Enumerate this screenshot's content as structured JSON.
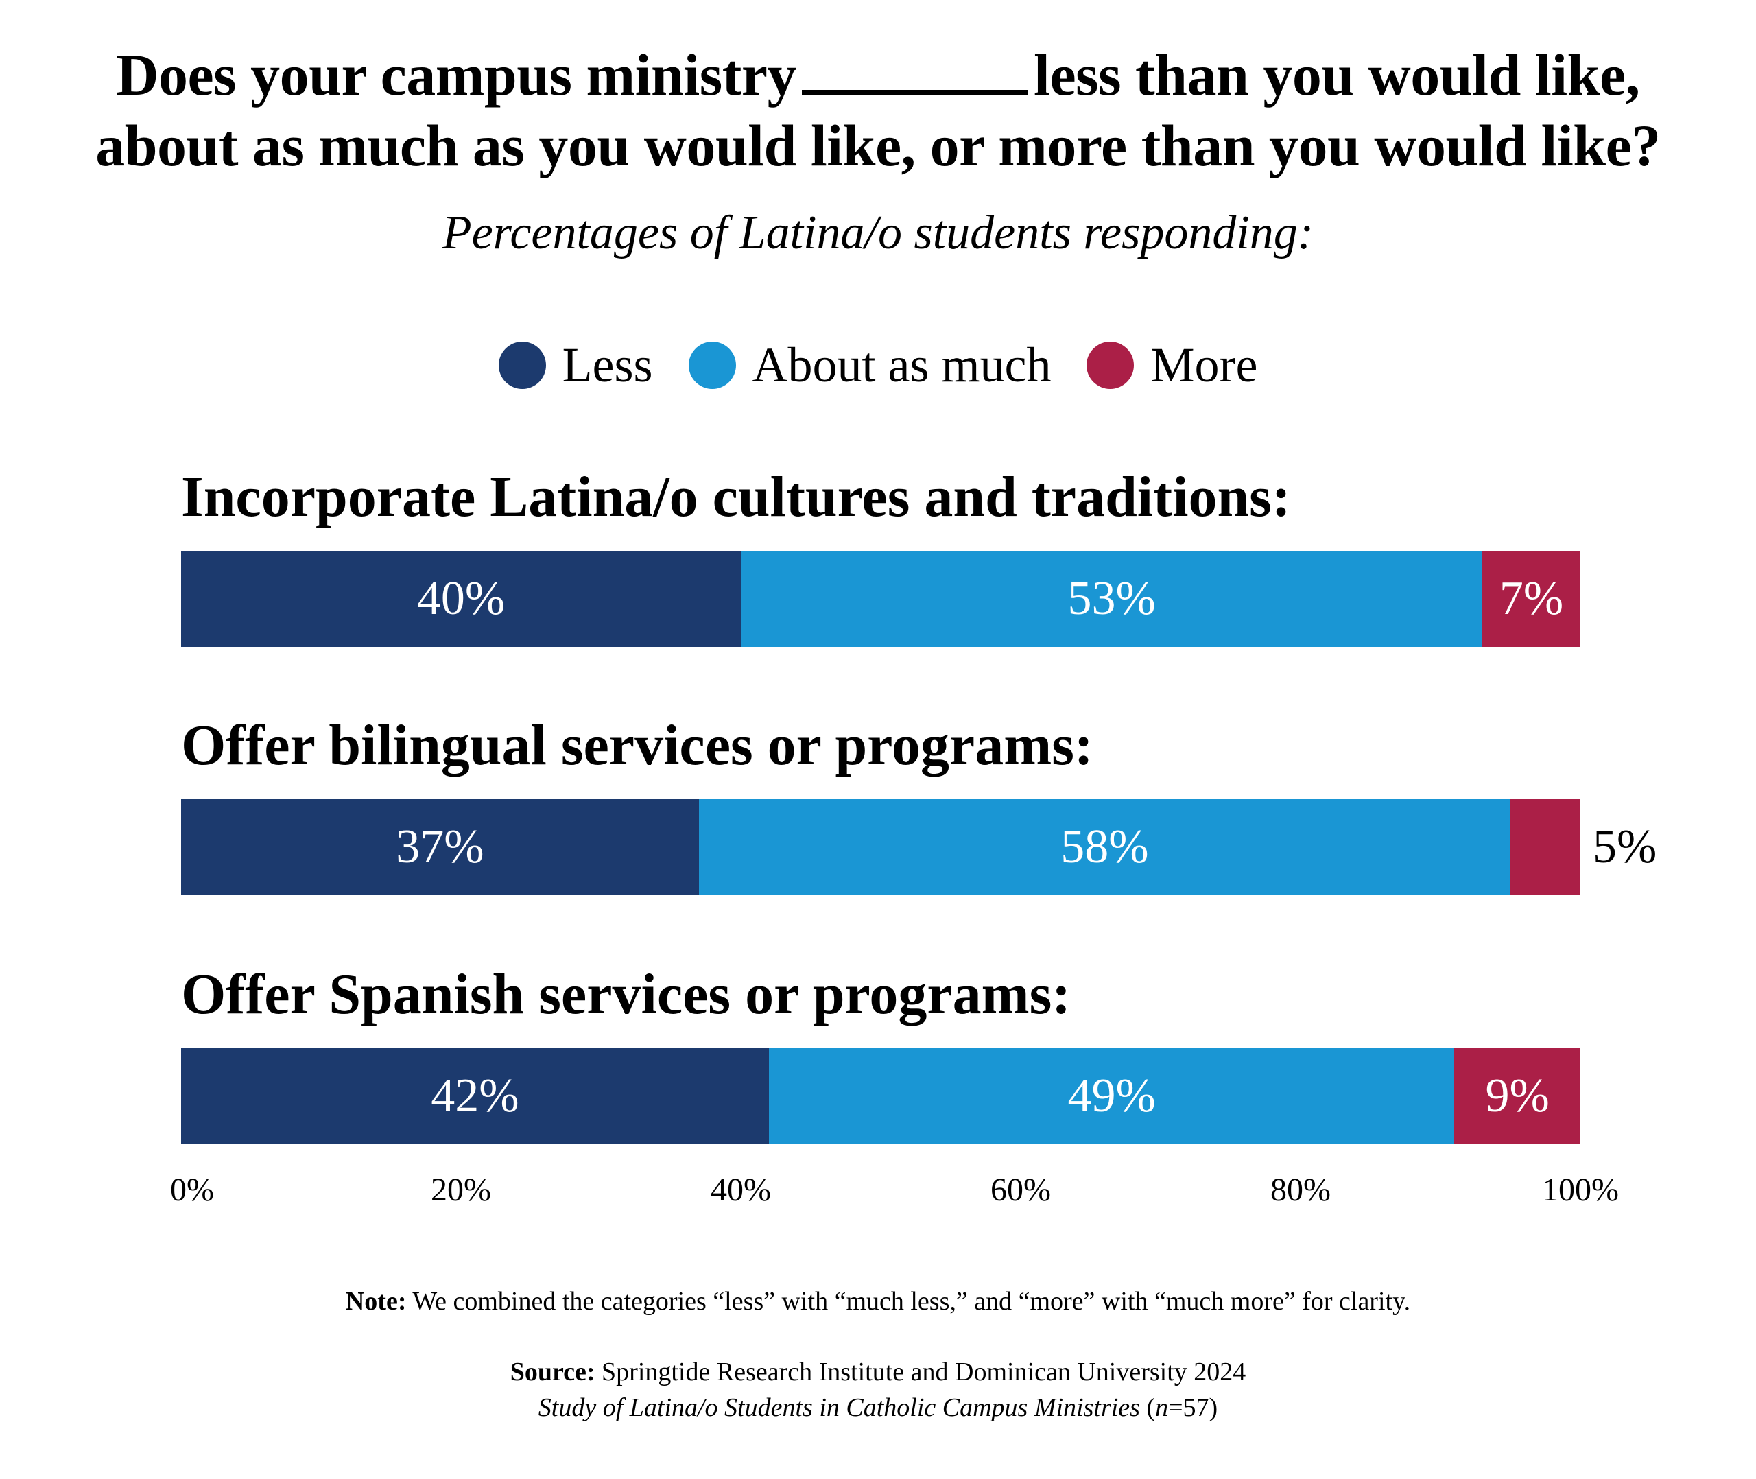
{
  "title": {
    "line1_before": "Does your campus ministry",
    "line1_after": "less than you would like,",
    "line2": "about as much as you would like, or more than you would like?"
  },
  "subtitle": "Percentages of Latina/o students responding:",
  "legend": [
    {
      "label": "Less",
      "color": "#1c3a6e"
    },
    {
      "label": "About as much",
      "color": "#1a96d4"
    },
    {
      "label": "More",
      "color": "#ab1f47"
    }
  ],
  "chart_data": {
    "type": "bar",
    "orientation": "horizontal",
    "stacked": true,
    "title": "Does your campus ministry _______ less than you would like, about as much as you would like, or more than you would like?",
    "subtitle": "Percentages of Latina/o students responding:",
    "categories": [
      "Incorporate Latina/o cultures and traditions:",
      "Offer bilingual services or programs:",
      "Offer Spanish services or programs:"
    ],
    "series": [
      {
        "name": "Less",
        "color": "#1c3a6e",
        "values": [
          40,
          37,
          42
        ],
        "labels": [
          "40%",
          "37%",
          "42%"
        ]
      },
      {
        "name": "About as much",
        "color": "#1a96d4",
        "values": [
          53,
          58,
          49
        ],
        "labels": [
          "53%",
          "58%",
          "49%"
        ]
      },
      {
        "name": "More",
        "color": "#ab1f47",
        "values": [
          7,
          5,
          9
        ],
        "labels": [
          "7%",
          "5%",
          "9%"
        ]
      }
    ],
    "outside_labels": [
      [
        false,
        false,
        false
      ],
      [
        false,
        false,
        true
      ],
      [
        false,
        false,
        false
      ]
    ],
    "xlabel": "",
    "ylabel": "",
    "xlim": [
      0,
      100
    ],
    "xticks": [
      "0%",
      "20%",
      "40%",
      "60%",
      "80%",
      "100%"
    ],
    "grid": false,
    "legend_position": "top-center"
  },
  "footer": {
    "note_label": "Note:",
    "note_text": "We combined the categories “less” with “much less,” and “more” with “much more” for clarity.",
    "source_label": "Source:",
    "source_text": "Springtide Research Institute and Dominican University 2024",
    "study_title": "Study of Latina/o Students in Catholic Campus Ministries",
    "study_n_open": " (",
    "study_n_var": "n",
    "study_n_rest": "=57)"
  }
}
